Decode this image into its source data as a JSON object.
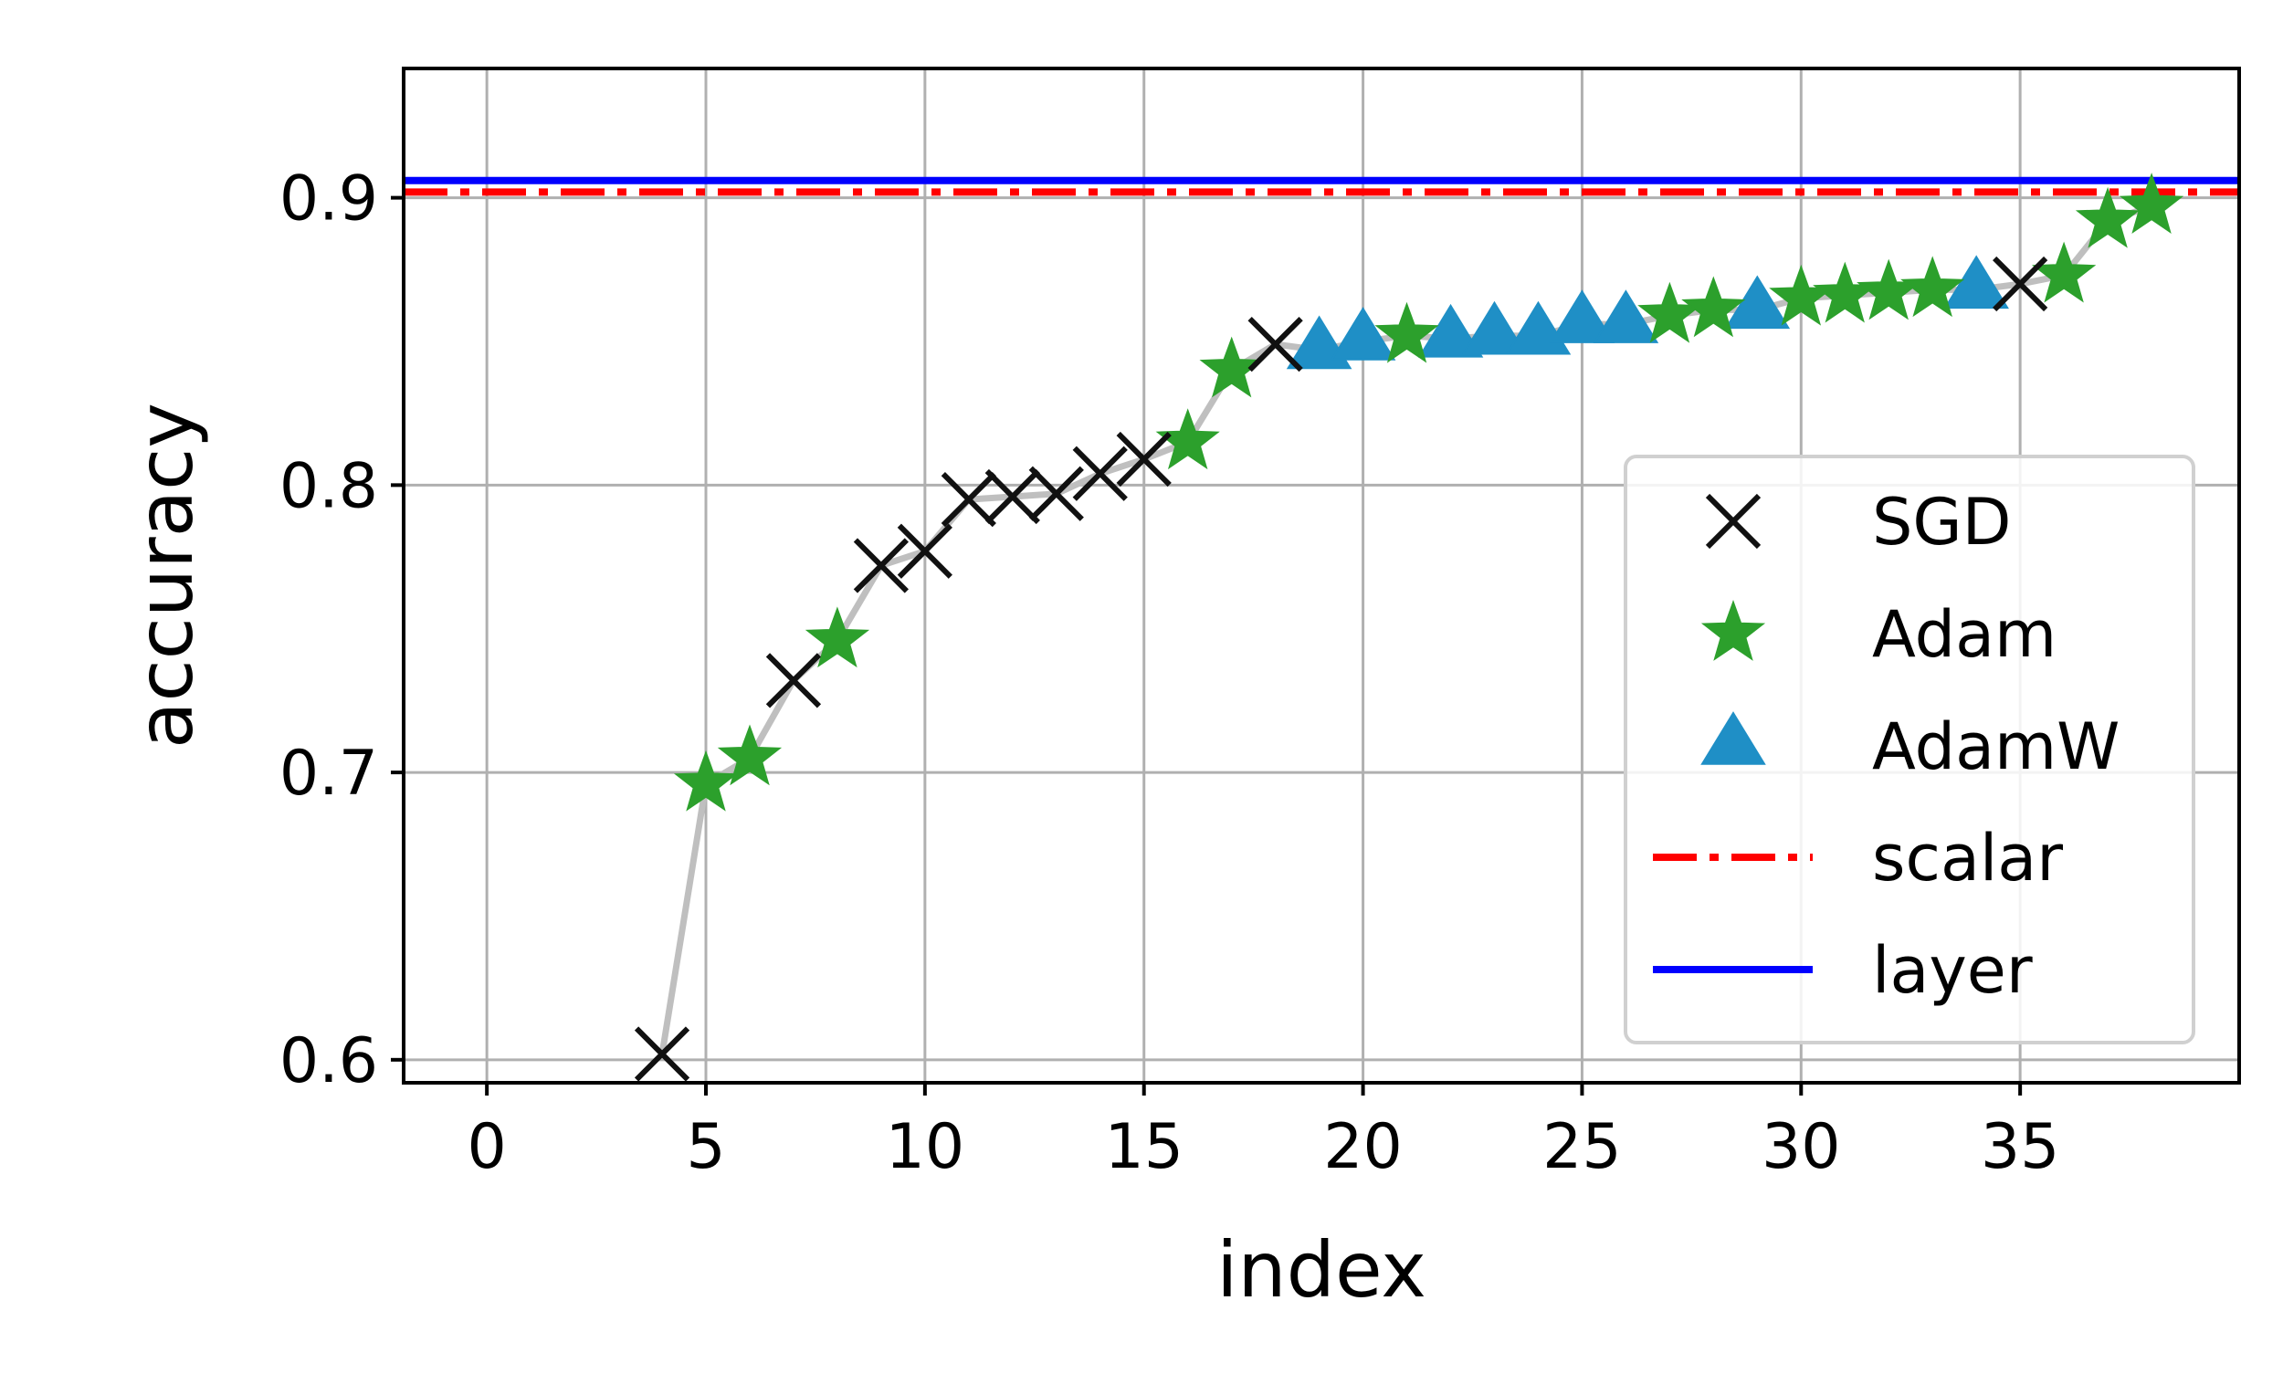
{
  "chart_data": {
    "type": "scatter",
    "xlabel": "index",
    "ylabel": "accuracy",
    "xlim": [
      -1.9,
      40
    ],
    "ylim": [
      0.592,
      0.945
    ],
    "xticks": [
      0,
      5,
      10,
      15,
      20,
      25,
      30,
      35
    ],
    "yticks": [
      0.6,
      0.7,
      0.8,
      0.9
    ],
    "xtick_labels": [
      "0",
      "5",
      "10",
      "15",
      "20",
      "25",
      "30",
      "35"
    ],
    "ytick_labels": [
      "0.6",
      "0.7",
      "0.8",
      "0.9"
    ],
    "grid": true,
    "legend_position": "lower right",
    "trace": {
      "color": "#bfbfbf",
      "x": [
        4,
        5,
        6,
        7,
        8,
        9,
        10,
        11,
        12,
        13,
        14,
        15,
        16,
        17,
        18,
        19,
        20,
        21,
        22,
        23,
        24,
        25,
        26,
        27,
        28,
        29,
        30,
        31,
        32,
        33,
        34,
        35,
        36,
        37,
        38
      ],
      "y": [
        0.602,
        0.696,
        0.705,
        0.732,
        0.746,
        0.772,
        0.777,
        0.795,
        0.796,
        0.797,
        0.804,
        0.809,
        0.815,
        0.84,
        0.849,
        0.847,
        0.85,
        0.852,
        0.851,
        0.852,
        0.852,
        0.856,
        0.856,
        0.859,
        0.861,
        0.861,
        0.865,
        0.866,
        0.867,
        0.868,
        0.868,
        0.87,
        0.873,
        0.892,
        0.897
      ]
    },
    "series": [
      {
        "name": "SGD",
        "marker": "x",
        "color": "#111111",
        "x": [
          4,
          7,
          9,
          10,
          11,
          12,
          13,
          14,
          15,
          18,
          35
        ],
        "y": [
          0.602,
          0.732,
          0.772,
          0.777,
          0.795,
          0.796,
          0.797,
          0.804,
          0.809,
          0.849,
          0.87
        ]
      },
      {
        "name": "Adam",
        "marker": "star",
        "color": "#2ca02c",
        "x": [
          5,
          6,
          8,
          16,
          17,
          21,
          27,
          28,
          30,
          31,
          32,
          33,
          36,
          37,
          38
        ],
        "y": [
          0.696,
          0.705,
          0.746,
          0.815,
          0.84,
          0.852,
          0.859,
          0.861,
          0.865,
          0.866,
          0.867,
          0.868,
          0.873,
          0.892,
          0.897
        ]
      },
      {
        "name": "AdamW",
        "marker": "triangle",
        "color": "#1f8fc6",
        "x": [
          19,
          20,
          22,
          23,
          24,
          25,
          26,
          29,
          34
        ],
        "y": [
          0.847,
          0.85,
          0.851,
          0.852,
          0.852,
          0.856,
          0.856,
          0.861,
          0.868
        ]
      }
    ],
    "hlines": [
      {
        "name": "scalar",
        "y": 0.902,
        "color": "#ff0000",
        "style": "dashdot"
      },
      {
        "name": "layer",
        "y": 0.906,
        "color": "#0000ff",
        "style": "solid"
      }
    ]
  }
}
